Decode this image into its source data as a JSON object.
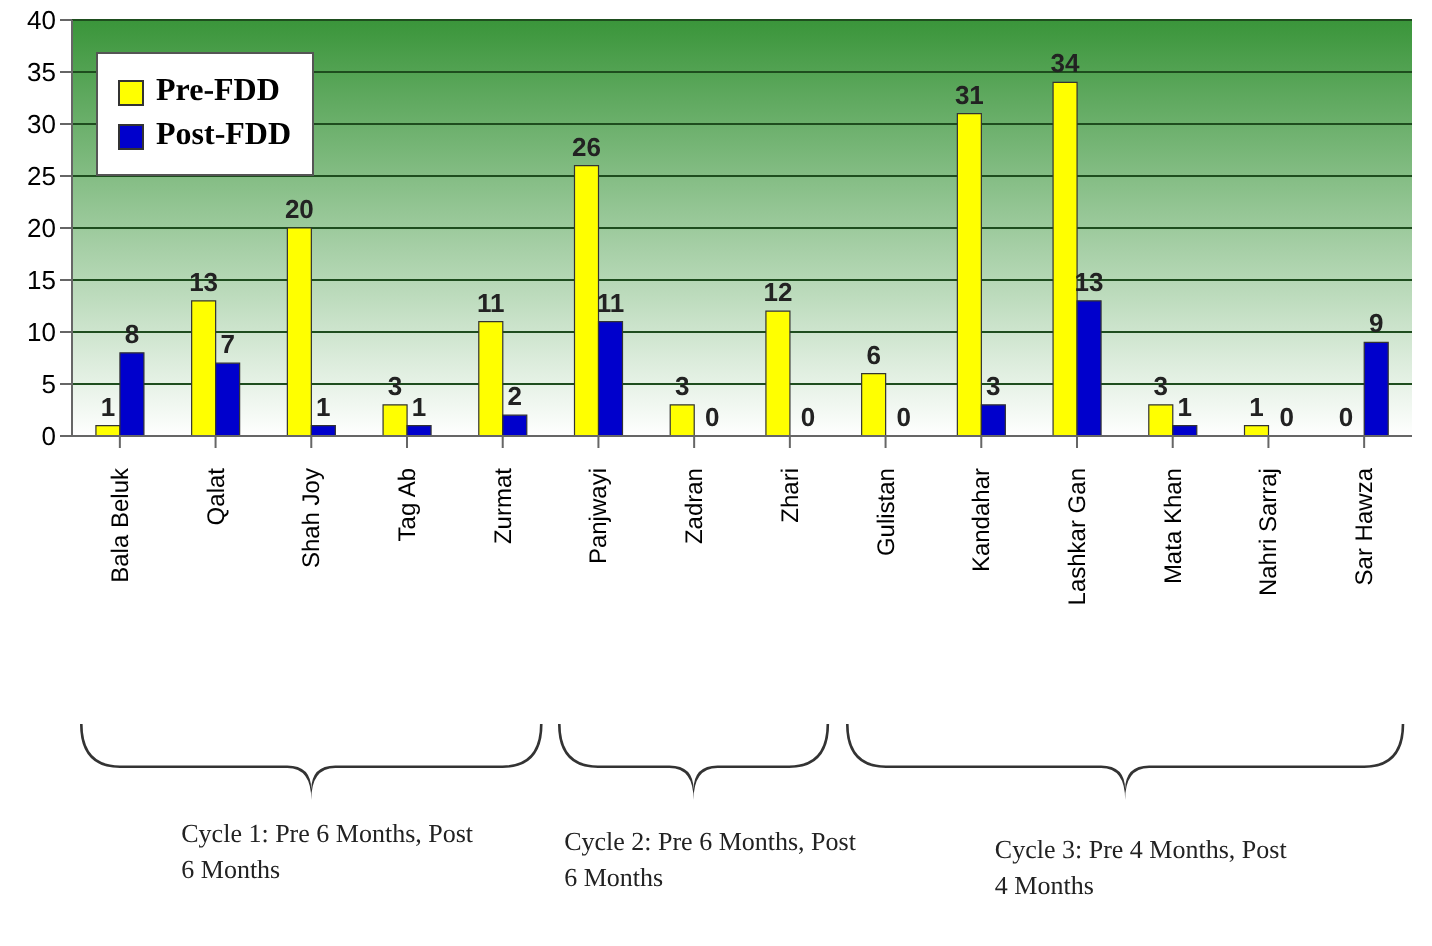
{
  "chart_data": {
    "type": "bar",
    "categories": [
      "Bala Beluk",
      "Qalat",
      "Shah Joy",
      "Tag Ab",
      "Zurmat",
      "Panjwayi",
      "Zadran",
      "Zhari",
      "Gulistan",
      "Kandahar",
      "Lashkar Gan",
      "Mata Khan",
      "Nahri Sarraj",
      "Sar Hawza"
    ],
    "series": [
      {
        "name": "Pre-FDD",
        "color": "#ffff00",
        "values": [
          1,
          13,
          20,
          3,
          11,
          26,
          3,
          12,
          6,
          31,
          34,
          3,
          1,
          0
        ]
      },
      {
        "name": "Post-FDD",
        "color": "#0000cc",
        "values": [
          8,
          7,
          1,
          1,
          2,
          11,
          0,
          0,
          0,
          3,
          13,
          1,
          0,
          9
        ]
      }
    ],
    "ylim": [
      0,
      40
    ],
    "yticks": [
      0,
      5,
      10,
      15,
      20,
      25,
      30,
      35,
      40
    ],
    "grid": "y",
    "legend": "top left",
    "data_labels": true,
    "annotations": [
      "Cycle 1: Pre 6 Months, Post 6 Months",
      "Cycle 2: Pre 6 Months, Post 6 Months",
      "Cycle 3: Pre 4 Months, Post 4 Months"
    ]
  }
}
